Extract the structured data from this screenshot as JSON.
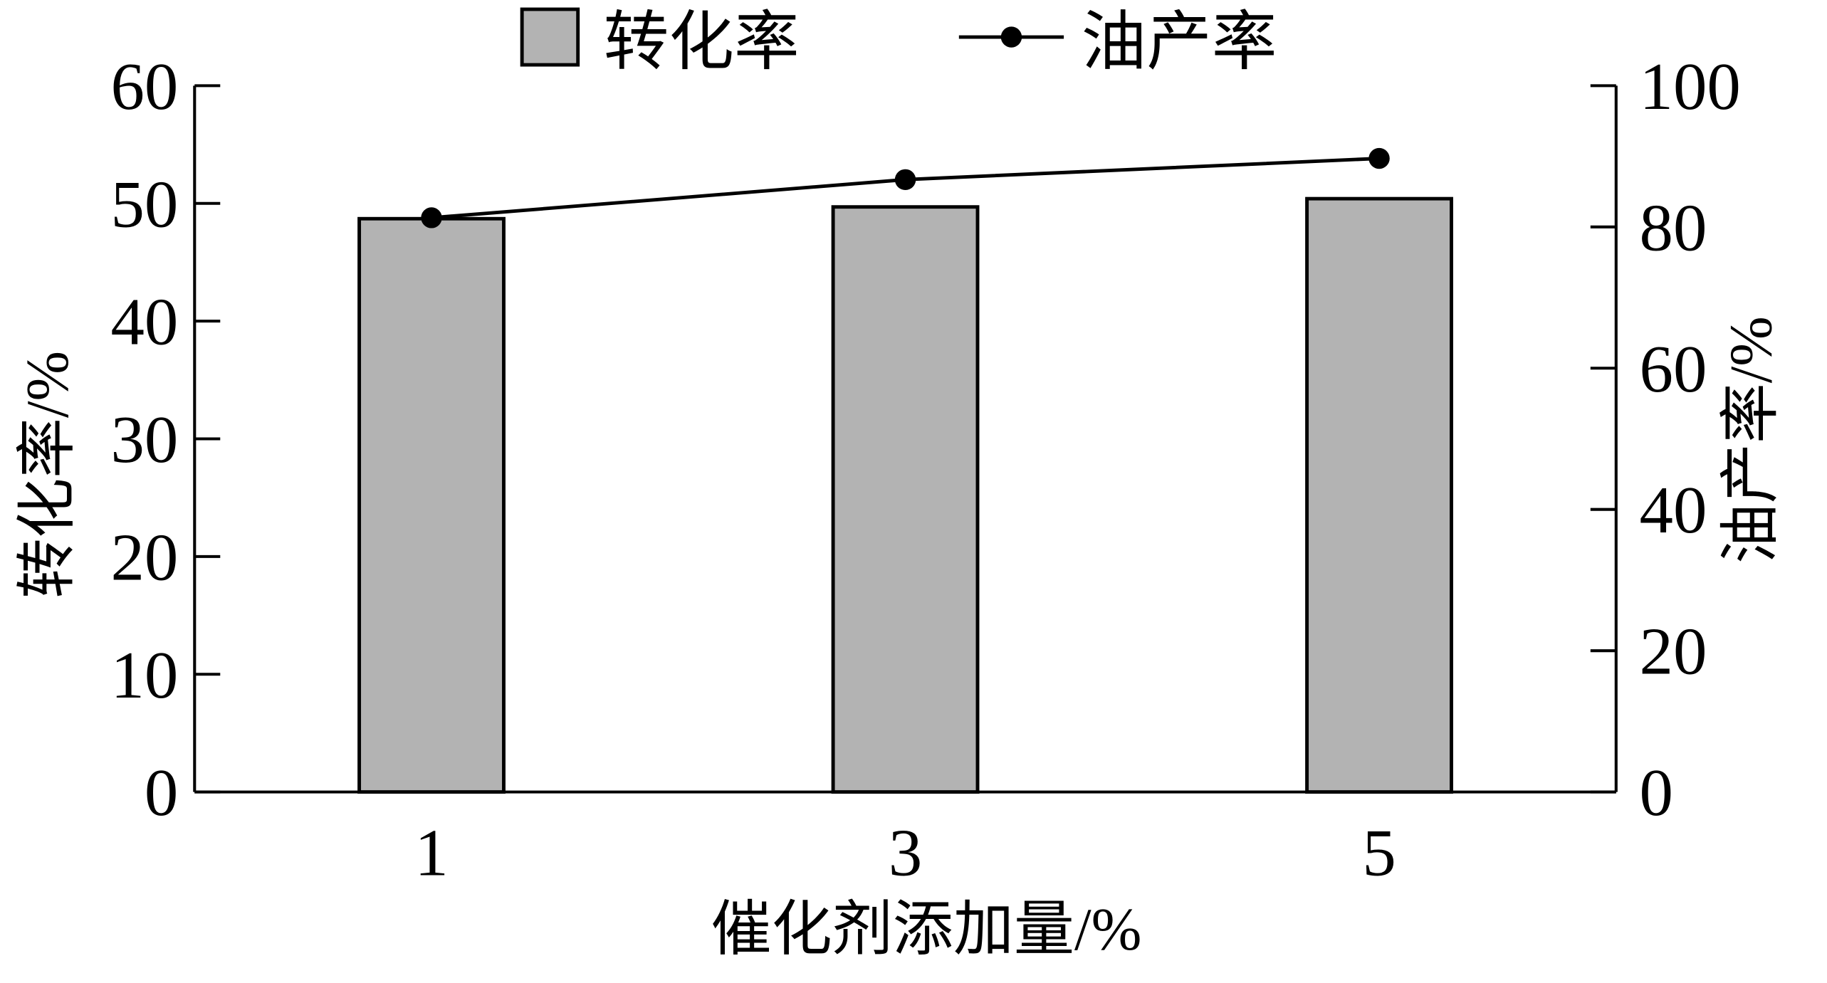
{
  "chart_data": {
    "type": "bar-line",
    "categories": [
      "1",
      "3",
      "5"
    ],
    "xlabel": "催化剂添加量/%",
    "ylabel": "转化率/%",
    "y2label": "油产率/%",
    "series": [
      {
        "name": "转化率",
        "type": "bar",
        "color": "#b3b3b3",
        "values": [
          48.7,
          49.7,
          50.4
        ]
      },
      {
        "name": "油产率",
        "type": "line",
        "axis": "y2",
        "color": "#000000",
        "values": [
          81.3,
          86.7,
          89.7
        ]
      }
    ],
    "ylim": [
      0,
      60
    ],
    "yticks": [
      0,
      10,
      20,
      30,
      40,
      50,
      60
    ],
    "y2lim": [
      0,
      100
    ],
    "y2ticks": [
      0,
      20,
      40,
      60,
      80,
      100
    ],
    "legend": "top"
  }
}
